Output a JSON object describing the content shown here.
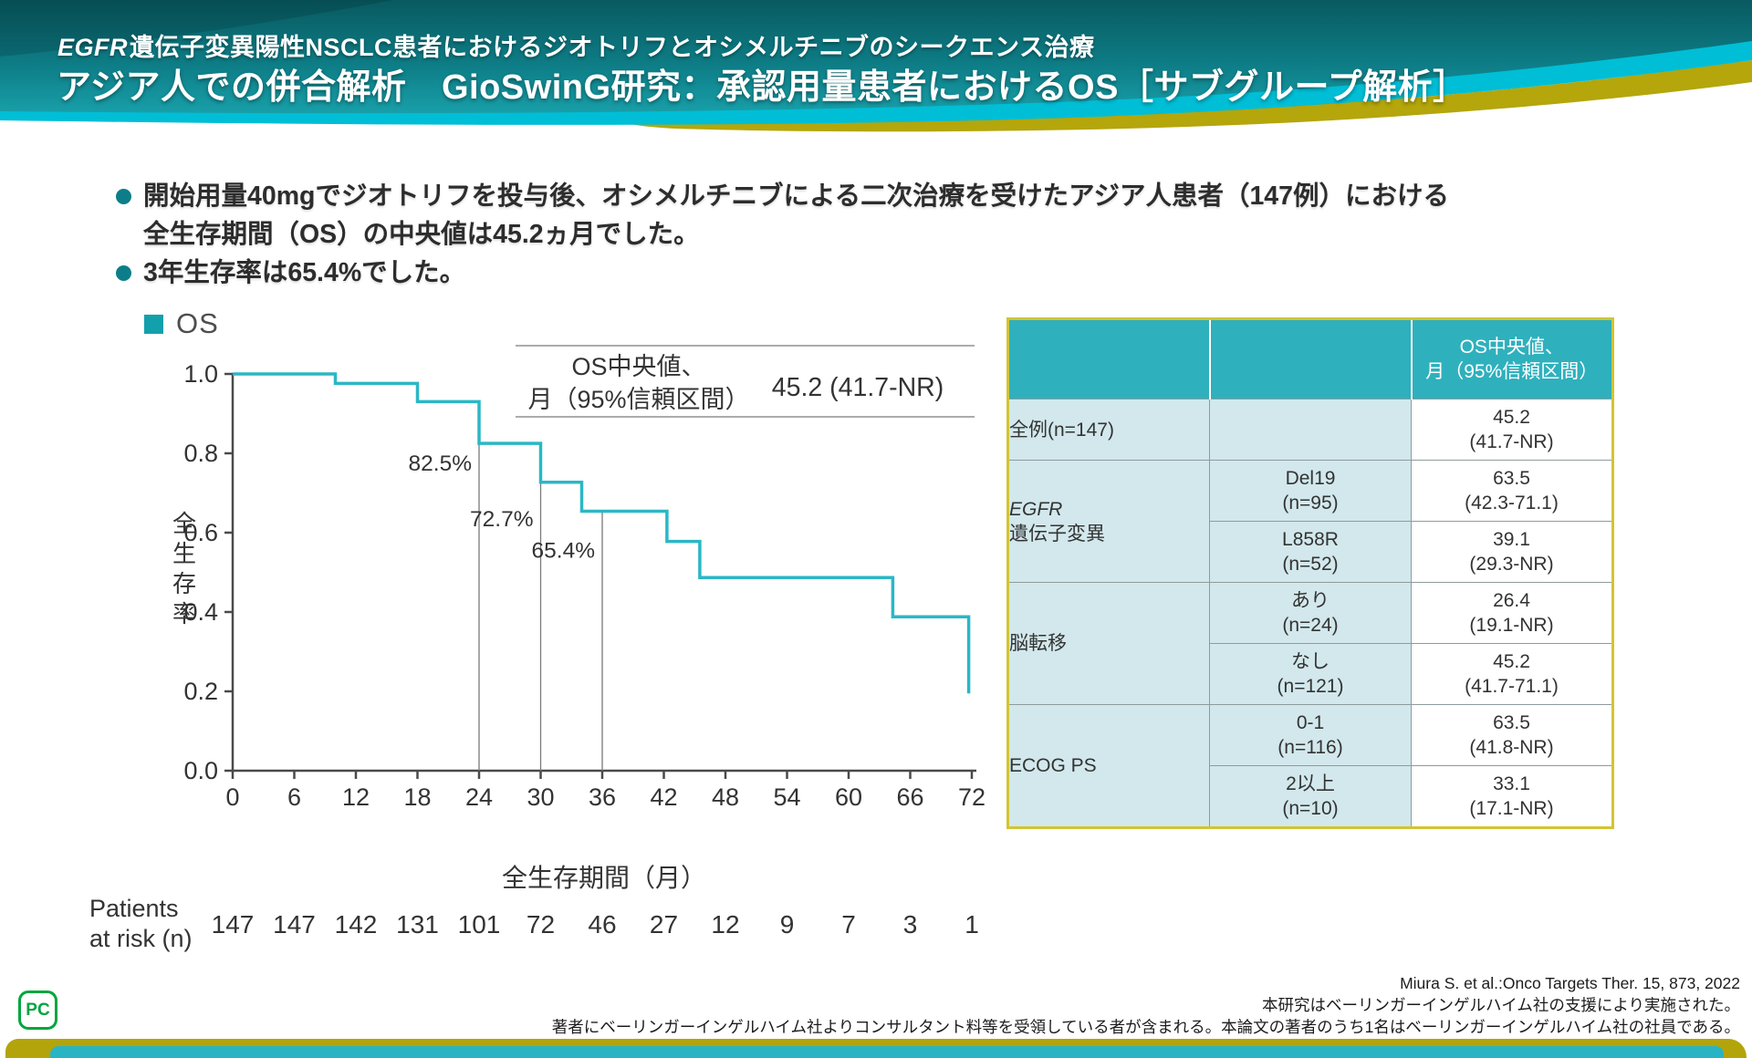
{
  "slide": {
    "title": {
      "line1_italic": "EGFR",
      "line1_rest": "遺伝子変異陽性NSCLC患者におけるジオトリフとオシメルチニブのシークエンス治療",
      "line2": "アジア人での併合解析　GioSwinG研究：承認用量患者におけるOS［サブグループ解析］"
    },
    "bullets": {
      "b1_line1": "開始用量40mgでジオトリフを投与後、オシメルチニブによる二次治療を受けたアジア人患者（147例）における",
      "b1_line2": "全生存期間（OS）の中央値は45.2ヵ月でした。",
      "b2": "3年生存率は65.4%でした。"
    },
    "section_label": "OS",
    "footer": {
      "line1": "Miura S. et al.:Onco Targets Ther. 15, 873, 2022",
      "line2": "本研究はベーリンガーインゲルハイム社の支援により実施された。",
      "line3": "著者にベーリンガーインゲルハイム社よりコンサルタント料等を受領している者が含まれる。本論文の著者のうち1名はベーリンガーインゲルハイム社の社員である。"
    },
    "logo_text": "PC"
  },
  "chart_data": {
    "type": "line",
    "subtype": "kaplan-meier-step",
    "title": "OS",
    "xlabel": "全生存期間（月）",
    "ylabel": "全生存率",
    "xlim": [
      0,
      72
    ],
    "ylim": [
      0.0,
      1.0
    ],
    "xticks": [
      0,
      6,
      12,
      18,
      24,
      30,
      36,
      42,
      48,
      54,
      60,
      66,
      72
    ],
    "yticks": [
      0.0,
      0.2,
      0.4,
      0.6,
      0.8,
      1.0
    ],
    "grid": false,
    "line_color": "#2bb7c6",
    "km_steps": [
      [
        0,
        1.0
      ],
      [
        10,
        1.0
      ],
      [
        10,
        0.976
      ],
      [
        18,
        0.976
      ],
      [
        18,
        0.93
      ],
      [
        24,
        0.93
      ],
      [
        24,
        0.825
      ],
      [
        30,
        0.825
      ],
      [
        30,
        0.727
      ],
      [
        34,
        0.727
      ],
      [
        34,
        0.654
      ],
      [
        42.3,
        0.654
      ],
      [
        42.3,
        0.578
      ],
      [
        45.5,
        0.578
      ],
      [
        45.5,
        0.487
      ],
      [
        64.3,
        0.487
      ],
      [
        64.3,
        0.388
      ],
      [
        71.7,
        0.388
      ],
      [
        71.7,
        0.195
      ]
    ],
    "ref_lines": [
      {
        "x": 24,
        "y": 0.825,
        "label": "82.5%"
      },
      {
        "x": 30,
        "y": 0.727,
        "label": "72.7%"
      },
      {
        "x": 36,
        "y": 0.654,
        "label": "65.4%"
      }
    ],
    "legend": {
      "label_lines": [
        "OS中央値、",
        "月（95%信頼区間）"
      ],
      "value": "45.2 (41.7-NR)"
    },
    "patients_at_risk": {
      "label_lines": [
        "Patients",
        "at risk (n)"
      ],
      "values": [
        147,
        147,
        142,
        131,
        101,
        72,
        46,
        27,
        12,
        9,
        7,
        3,
        1
      ]
    }
  },
  "table": {
    "header_value_col_lines": [
      "OS中央値、",
      "月（95%信頼区間）"
    ],
    "groups": [
      {
        "label_lines": [
          "全例(n=147)"
        ],
        "italic_first": false,
        "rows": [
          {
            "sub_lines": [],
            "value_lines": [
              "45.2",
              "(41.7-NR)"
            ]
          }
        ]
      },
      {
        "label_lines": [
          "EGFR",
          "遺伝子変異"
        ],
        "italic_first": true,
        "rows": [
          {
            "sub_lines": [
              "Del19",
              "(n=95)"
            ],
            "value_lines": [
              "63.5",
              "(42.3-71.1)"
            ]
          },
          {
            "sub_lines": [
              "L858R",
              "(n=52)"
            ],
            "value_lines": [
              "39.1",
              "(29.3-NR)"
            ]
          }
        ]
      },
      {
        "label_lines": [
          "脳転移"
        ],
        "italic_first": false,
        "rows": [
          {
            "sub_lines": [
              "あり",
              "(n=24)"
            ],
            "value_lines": [
              "26.4",
              "(19.1-NR)"
            ]
          },
          {
            "sub_lines": [
              "なし",
              "(n=121)"
            ],
            "value_lines": [
              "45.2",
              "(41.7-71.1)"
            ]
          }
        ]
      },
      {
        "label_lines": [
          "ECOG PS"
        ],
        "italic_first": false,
        "rows": [
          {
            "sub_lines": [
              "0-1",
              "(n=116)"
            ],
            "value_lines": [
              "63.5",
              "(41.8-NR)"
            ]
          },
          {
            "sub_lines": [
              "2以上",
              "(n=10)"
            ],
            "value_lines": [
              "33.1",
              "(17.1-NR)"
            ]
          }
        ]
      }
    ]
  },
  "colors": {
    "header_teal_dark": "#085a60",
    "header_teal_light": "#19a3ad",
    "swoosh_cyan": "#00bed6",
    "swoosh_yellow": "#b4a60b",
    "accent_teal": "#12a0ac",
    "bullet_teal": "#0d7e89",
    "curve_cyan": "#2bb7c6",
    "table_header_teal": "#2fb0bd",
    "table_cell_blue": "#d2e8ec",
    "table_outer_border": "#d2c531",
    "band_yellow": "#b3a40b",
    "band_teal": "#28b4c4",
    "logo_green": "#00a63e"
  }
}
